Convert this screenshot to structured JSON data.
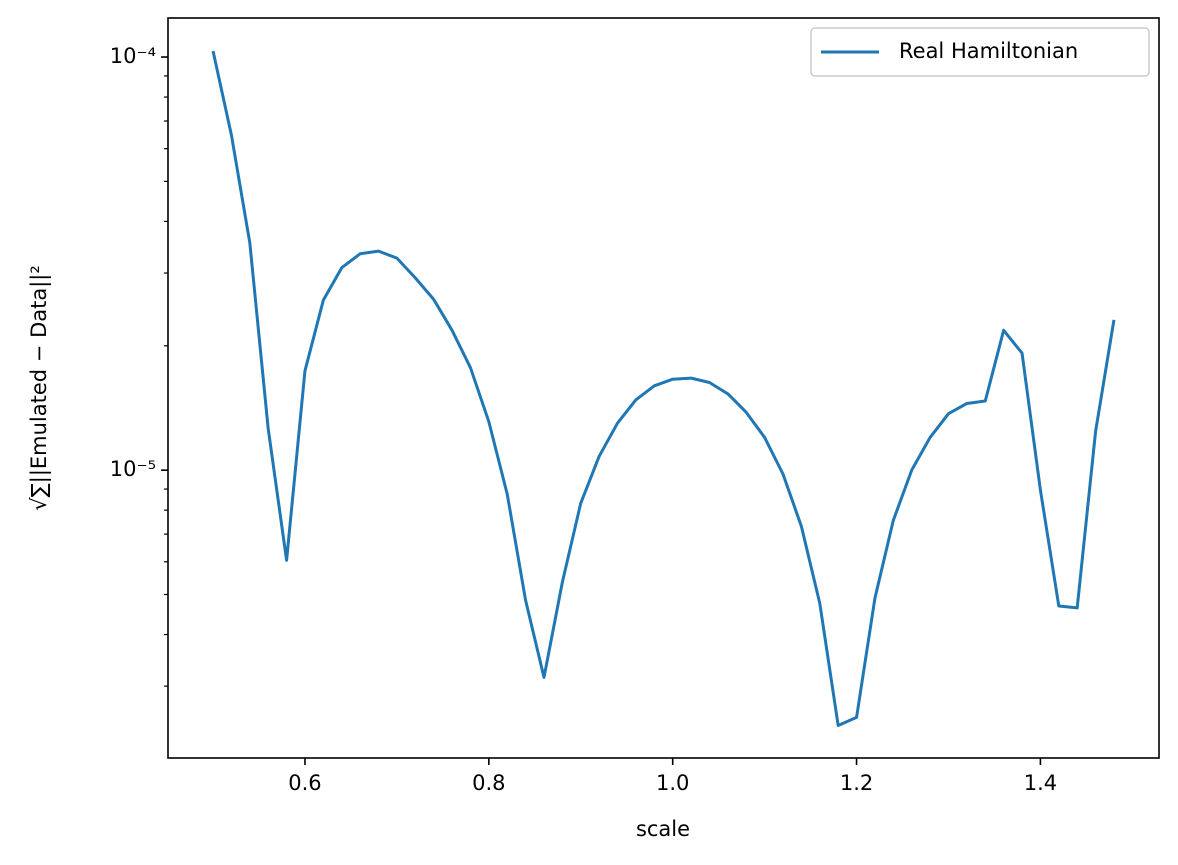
{
  "chart_data": {
    "type": "line",
    "xlabel": "scale",
    "ylabel": "√∑||Emulated − Data||²",
    "x": [
      0.5,
      0.52,
      0.54,
      0.56,
      0.58,
      0.6,
      0.62,
      0.64,
      0.66,
      0.68,
      0.7,
      0.72,
      0.74,
      0.76,
      0.78,
      0.8,
      0.82,
      0.84,
      0.86,
      0.88,
      0.9,
      0.92,
      0.94,
      0.96,
      0.98,
      1.0,
      1.02,
      1.04,
      1.06,
      1.08,
      1.1,
      1.12,
      1.14,
      1.16,
      1.18,
      1.2,
      1.22,
      1.24,
      1.26,
      1.28,
      1.3,
      1.32,
      1.34,
      1.36,
      1.38,
      1.4,
      1.42,
      1.44,
      1.46,
      1.48
    ],
    "series": [
      {
        "name": "Real Hamiltonian",
        "color": "#1f77b4",
        "values": [
          0.0001034,
          6.47e-05,
          3.55e-05,
          1.26e-05,
          6.05e-06,
          1.74e-05,
          2.58e-05,
          3.09e-05,
          3.34e-05,
          3.39e-05,
          3.26e-05,
          2.92e-05,
          2.59e-05,
          2.18e-05,
          1.77e-05,
          1.31e-05,
          8.75e-06,
          4.84e-06,
          3.15e-06,
          5.36e-06,
          8.32e-06,
          1.08e-05,
          1.3e-05,
          1.48e-05,
          1.6e-05,
          1.66e-05,
          1.67e-05,
          1.63e-05,
          1.53e-05,
          1.38e-05,
          1.2e-05,
          9.78e-06,
          7.31e-06,
          4.76e-06,
          2.41e-06,
          2.52e-06,
          4.9e-06,
          7.56e-06,
          1e-05,
          1.2e-05,
          1.37e-05,
          1.45e-05,
          1.47e-05,
          2.18e-05,
          1.92e-05,
          8.95e-06,
          4.69e-06,
          4.64e-06,
          1.24e-05,
          2.31e-05
        ]
      }
    ],
    "xlim": [
      0.451,
      1.529
    ],
    "xticks": [
      0.6,
      0.8,
      {
        "value": 1,
        "label": "1.0"
      },
      1.2,
      1.4
    ],
    "ylim": [
      2.01e-06,
      0.0001243
    ],
    "yscale": "log",
    "yticks": [
      {
        "value": 0.0001,
        "label": "10⁻⁴"
      },
      {
        "value": 1e-05,
        "label": "10⁻⁵"
      }
    ],
    "yminorticks": [
      3e-06,
      4e-06,
      5e-06,
      6e-06,
      7e-06,
      8e-06,
      9e-06,
      2e-05,
      3e-05,
      4e-05,
      5e-05,
      6e-05,
      7e-05,
      8e-05,
      9e-05
    ],
    "legend": "upper right",
    "grid": false
  }
}
